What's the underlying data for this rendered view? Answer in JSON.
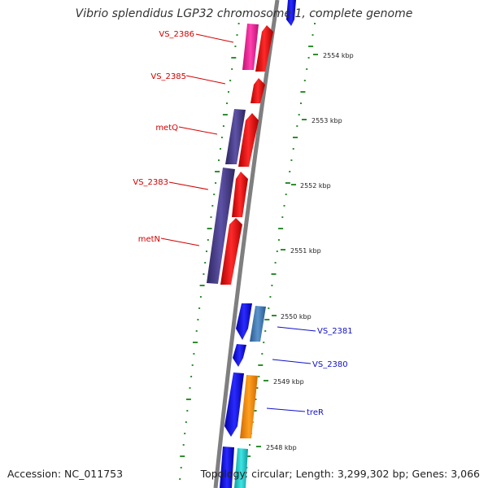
{
  "title": "Vibrio splendidus LGP32 chromosome 1, complete genome",
  "accession_label": "Accession: NC_011753",
  "topology_label": "Topology: circular; Length: 3,299,302 bp; Genes: 3,066",
  "colors": {
    "backbone": "#7f7f7f",
    "gc_ticks": "#2f8f2f",
    "label_reverse": "#d40000",
    "label_forward": "#1010c8"
  },
  "scale_ticks": [
    "2554 kbp",
    "2553 kbp",
    "2552 kbp",
    "2551 kbp",
    "2550 kbp",
    "2549 kbp",
    "2548 kbp"
  ],
  "gene_labels": [
    {
      "name": "VS_2386",
      "strand": "reverse"
    },
    {
      "name": "VS_2385",
      "strand": "reverse"
    },
    {
      "name": "metQ",
      "strand": "reverse"
    },
    {
      "name": "VS_2383",
      "strand": "reverse"
    },
    {
      "name": "metN",
      "strand": "reverse"
    },
    {
      "name": "VS_2381",
      "strand": "forward"
    },
    {
      "name": "VS_2380",
      "strand": "forward"
    },
    {
      "name": "treR",
      "strand": "forward"
    }
  ],
  "gene_colors": {
    "pink": "#ff2fa0",
    "red": "#ff1010",
    "purple": "#4a3f8a",
    "blue": "#1010ee",
    "steel": "#3f78b8",
    "orange": "#ff8a00",
    "cyan": "#22cccc"
  }
}
